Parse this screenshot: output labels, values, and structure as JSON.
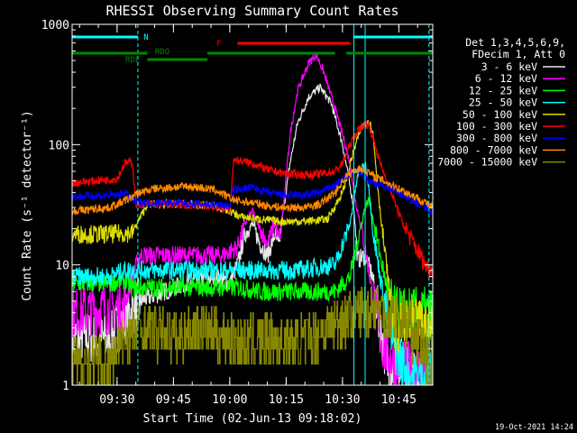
{
  "chart_data": {
    "type": "line",
    "title": "RHESSI Observing Summary Count Rates",
    "xlabel": "Start Time (02-Jun-13 09:18:02)",
    "ylabel": "Count Rate (s⁻¹ detector⁻¹)",
    "x_unit": "minutes after 09:18:02",
    "xlim": [
      0,
      96
    ],
    "ylim": [
      1,
      1000
    ],
    "yscale": "log",
    "xticks": [
      {
        "label": "09:30",
        "x": 11.97
      },
      {
        "label": "09:45",
        "x": 26.97
      },
      {
        "label": "10:00",
        "x": 41.97
      },
      {
        "label": "10:15",
        "x": 56.97
      },
      {
        "label": "10:30",
        "x": 71.97
      },
      {
        "label": "10:45",
        "x": 86.97
      }
    ],
    "yticks": [
      {
        "label": "1000",
        "y": 1000
      },
      {
        "label": "100",
        "y": 100
      },
      {
        "label": "10",
        "y": 10
      },
      {
        "label": "1",
        "y": 1
      }
    ],
    "legend_header": [
      "Det 1,3,4,5,6,9,",
      "FDecim 1, Att 0"
    ],
    "legend_position": "right",
    "series": [
      {
        "name": "3 - 6 keV",
        "color": "#e6e6e6",
        "points": [
          [
            0,
            2.5
          ],
          [
            10,
            2.4
          ],
          [
            12,
            3
          ],
          [
            18,
            5
          ],
          [
            30,
            7
          ],
          [
            38,
            8
          ],
          [
            42,
            7
          ],
          [
            44,
            10
          ],
          [
            46,
            18
          ],
          [
            48,
            22
          ],
          [
            50,
            15
          ],
          [
            52,
            12
          ],
          [
            54,
            18
          ],
          [
            55,
            14
          ],
          [
            56,
            25
          ],
          [
            58,
            70
          ],
          [
            60,
            150
          ],
          [
            63,
            250
          ],
          [
            66,
            300
          ],
          [
            69,
            220
          ],
          [
            72,
            100
          ],
          [
            75,
            30
          ],
          [
            76,
            11
          ],
          [
            78,
            12
          ],
          [
            80,
            8
          ],
          [
            82,
            3
          ],
          [
            84,
            1.5
          ],
          [
            86,
            1.3
          ],
          [
            90,
            1.2
          ],
          [
            96,
            1.2
          ]
        ]
      },
      {
        "name": "6 - 12 keV",
        "color": "#ff00ff",
        "points": [
          [
            0,
            4
          ],
          [
            14,
            4.5
          ],
          [
            16,
            8
          ],
          [
            18,
            12
          ],
          [
            30,
            12
          ],
          [
            40,
            12
          ],
          [
            44,
            14
          ],
          [
            46,
            22
          ],
          [
            48,
            28
          ],
          [
            50,
            20
          ],
          [
            52,
            15
          ],
          [
            54,
            22
          ],
          [
            55,
            16
          ],
          [
            56,
            25
          ],
          [
            58,
            120
          ],
          [
            60,
            280
          ],
          [
            63,
            480
          ],
          [
            65,
            560
          ],
          [
            67,
            400
          ],
          [
            70,
            200
          ],
          [
            72,
            120
          ],
          [
            74,
            70
          ],
          [
            75,
            40
          ],
          [
            77,
            20
          ],
          [
            79,
            9
          ],
          [
            81,
            3.5
          ],
          [
            83,
            2
          ],
          [
            86,
            1.5
          ],
          [
            96,
            1.3
          ]
        ]
      },
      {
        "name": "12 - 25 keV",
        "color": "#00ff00",
        "points": [
          [
            0,
            7
          ],
          [
            10,
            7
          ],
          [
            14,
            7.5
          ],
          [
            16,
            6.5
          ],
          [
            20,
            6.5
          ],
          [
            30,
            6.5
          ],
          [
            40,
            6.5
          ],
          [
            45,
            6.5
          ],
          [
            50,
            6
          ],
          [
            55,
            6
          ],
          [
            62,
            6
          ],
          [
            70,
            6
          ],
          [
            74,
            8
          ],
          [
            76,
            16
          ],
          [
            78,
            30
          ],
          [
            79,
            35
          ],
          [
            80,
            25
          ],
          [
            82,
            12
          ],
          [
            84,
            6
          ],
          [
            86,
            4
          ],
          [
            90,
            4
          ],
          [
            96,
            4
          ]
        ]
      },
      {
        "name": "25 - 50 keV",
        "color": "#00ffff",
        "points": [
          [
            0,
            8
          ],
          [
            10,
            8
          ],
          [
            14,
            9
          ],
          [
            20,
            9
          ],
          [
            30,
            9
          ],
          [
            40,
            9
          ],
          [
            50,
            9
          ],
          [
            60,
            9
          ],
          [
            70,
            10
          ],
          [
            74,
            22
          ],
          [
            76,
            55
          ],
          [
            78,
            70
          ],
          [
            79,
            45
          ],
          [
            80,
            20
          ],
          [
            82,
            8
          ],
          [
            84,
            3.5
          ],
          [
            86,
            2
          ],
          [
            88,
            1.5
          ],
          [
            90,
            1.2
          ],
          [
            96,
            1.2
          ]
        ]
      },
      {
        "name": "50 - 100 keV",
        "color": "#dddd00",
        "points": [
          [
            0,
            18
          ],
          [
            10,
            18
          ],
          [
            16,
            18.5
          ],
          [
            20,
            32
          ],
          [
            30,
            32
          ],
          [
            38,
            31
          ],
          [
            42,
            28
          ],
          [
            45,
            25
          ],
          [
            50,
            24
          ],
          [
            55,
            23
          ],
          [
            62,
            23
          ],
          [
            68,
            24
          ],
          [
            72,
            40
          ],
          [
            75,
            90
          ],
          [
            77,
            140
          ],
          [
            79,
            160
          ],
          [
            80,
            130
          ],
          [
            81,
            60
          ],
          [
            82,
            28
          ],
          [
            83,
            15
          ],
          [
            84,
            8
          ],
          [
            85,
            4.5
          ],
          [
            86,
            3
          ],
          [
            88,
            3
          ],
          [
            92,
            3.2
          ],
          [
            96,
            3
          ]
        ]
      },
      {
        "name": "100 - 300 keV",
        "color": "#ff0000",
        "points": [
          [
            0,
            48
          ],
          [
            12,
            52
          ],
          [
            14,
            70
          ],
          [
            16,
            72
          ],
          [
            17,
            32
          ],
          [
            25,
            32
          ],
          [
            35,
            31
          ],
          [
            42,
            29
          ],
          [
            43,
            75
          ],
          [
            48,
            70
          ],
          [
            52,
            62
          ],
          [
            56,
            58
          ],
          [
            62,
            56
          ],
          [
            66,
            57
          ],
          [
            70,
            60
          ],
          [
            72,
            70
          ],
          [
            74,
            100
          ],
          [
            76,
            130
          ],
          [
            78,
            150
          ],
          [
            79,
            145
          ],
          [
            80,
            115
          ],
          [
            82,
            70
          ],
          [
            85,
            40
          ],
          [
            88,
            22
          ],
          [
            91,
            15
          ],
          [
            94,
            10
          ],
          [
            96,
            9
          ]
        ]
      },
      {
        "name": "300 - 800 keV",
        "color": "#0000ff",
        "points": [
          [
            0,
            37
          ],
          [
            12,
            38
          ],
          [
            14,
            40
          ],
          [
            17,
            33
          ],
          [
            25,
            33
          ],
          [
            35,
            32
          ],
          [
            42,
            31
          ],
          [
            43,
            42
          ],
          [
            48,
            44
          ],
          [
            52,
            40
          ],
          [
            56,
            38
          ],
          [
            62,
            38
          ],
          [
            66,
            40
          ],
          [
            70,
            46
          ],
          [
            74,
            58
          ],
          [
            77,
            60
          ],
          [
            79,
            50
          ],
          [
            82,
            46
          ],
          [
            85,
            43
          ],
          [
            88,
            38
          ],
          [
            91,
            34
          ],
          [
            94,
            30
          ],
          [
            96,
            28
          ]
        ]
      },
      {
        "name": "800 - 7000 keV",
        "color": "#ff8800",
        "points": [
          [
            0,
            28
          ],
          [
            10,
            30
          ],
          [
            14,
            34
          ],
          [
            18,
            40
          ],
          [
            22,
            43
          ],
          [
            26,
            44
          ],
          [
            30,
            45
          ],
          [
            34,
            44
          ],
          [
            38,
            42
          ],
          [
            42,
            36
          ],
          [
            44,
            34
          ],
          [
            48,
            33
          ],
          [
            52,
            31
          ],
          [
            56,
            30
          ],
          [
            62,
            30
          ],
          [
            66,
            32
          ],
          [
            70,
            40
          ],
          [
            73,
            55
          ],
          [
            76,
            63
          ],
          [
            78,
            62
          ],
          [
            80,
            55
          ],
          [
            83,
            50
          ],
          [
            86,
            45
          ],
          [
            89,
            40
          ],
          [
            92,
            36
          ],
          [
            94,
            33
          ],
          [
            96,
            30
          ]
        ]
      },
      {
        "name": "7000 - 15000 keV",
        "color": "#888800",
        "points": [
          [
            0,
            1.5
          ],
          [
            10,
            1.5
          ],
          [
            12,
            1.8
          ],
          [
            14,
            2.5
          ],
          [
            18,
            3
          ],
          [
            22,
            2.8
          ],
          [
            28,
            2.5
          ],
          [
            34,
            3
          ],
          [
            40,
            2.6
          ],
          [
            46,
            2.2
          ],
          [
            52,
            2.5
          ],
          [
            58,
            2.2
          ],
          [
            64,
            2.6
          ],
          [
            68,
            3
          ],
          [
            72,
            3.5
          ],
          [
            76,
            4
          ],
          [
            80,
            4.5
          ],
          [
            84,
            4
          ],
          [
            88,
            3.5
          ],
          [
            92,
            2.5
          ],
          [
            96,
            1.3
          ]
        ]
      }
    ],
    "flags": [
      {
        "label": "N",
        "color": "#00ffff",
        "y_level": 1,
        "segments": [
          [
            0,
            17.5
          ],
          [
            75,
            96
          ]
        ]
      },
      {
        "label": "F",
        "color": "#ff0000",
        "y_level": 2,
        "segments": [
          [
            44,
            74
          ]
        ]
      },
      {
        "label": "RDO",
        "color": "#008800",
        "y_level": 3,
        "segments": [
          [
            0,
            20
          ],
          [
            36,
            70
          ],
          [
            73,
            96
          ]
        ]
      },
      {
        "label": "RDE",
        "color": "#008800",
        "y_level": 4,
        "segments": [
          [
            20,
            36
          ]
        ]
      }
    ],
    "vlines": [
      {
        "x": 17.5,
        "color": "#00ffff",
        "style": "dashed"
      },
      {
        "x": 75,
        "color": "#00ffff",
        "style": "solid"
      },
      {
        "x": 78,
        "color": "#00ffff",
        "style": "solid"
      },
      {
        "x": 95,
        "color": "#00ffff",
        "style": "dashed"
      }
    ]
  },
  "footer": {
    "timestamp": "19-Oct-2021 14:24"
  }
}
